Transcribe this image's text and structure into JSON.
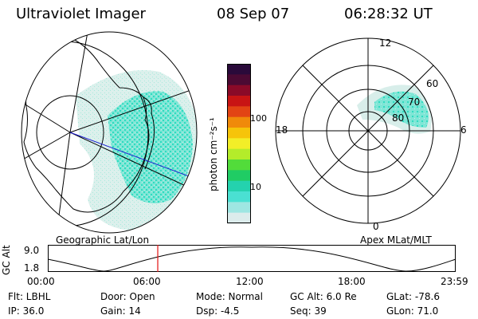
{
  "header": {
    "instrument": "Ultraviolet Imager",
    "date": "08 Sep 07",
    "time": "06:28:32 UT"
  },
  "colorbar": {
    "unit_label": "photon cm⁻²s⁻¹",
    "ticks": [
      "100",
      "10"
    ],
    "colors": [
      "#2a0a3a",
      "#4b0a33",
      "#8a0a28",
      "#c81414",
      "#e24414",
      "#f08a0a",
      "#f6c40a",
      "#f2ee28",
      "#b4ec2a",
      "#52dc3a",
      "#20cc64",
      "#24d2ae",
      "#4ae0d2",
      "#9ee6e2",
      "#dcecec"
    ]
  },
  "geo_map": {
    "label": "Geographic Lat/Lon",
    "aurora_colors": [
      "#2fdcc0",
      "#7fe6d6",
      "#c7eee6"
    ]
  },
  "polar_plot": {
    "label": "Apex MLat/MLT",
    "mlt_labels": {
      "top": "12",
      "right": "6",
      "left": "18",
      "bottom": "0"
    },
    "lat_labels": [
      "60",
      "70",
      "80"
    ]
  },
  "altitude_plot": {
    "ylabel": "GC Alt",
    "yticks": [
      "9.0",
      "1.8"
    ],
    "xticks": [
      "00:00",
      "06:00",
      "12:00",
      "18:00",
      "23:59"
    ],
    "cursor_color": "#e01010",
    "cursor_time_hours": 6.47
  },
  "footer": {
    "filter": "Flt: LBHL",
    "door": "Door: Open",
    "mode": "Mode: Normal",
    "gc_alt": "GC Alt: 6.0 Re",
    "glat": "GLat: -78.6",
    "ip": "IP: 36.0",
    "gain": "Gain: 14",
    "dsp": "Dsp:    -4.5",
    "seq": "Seq: 39",
    "glon": "GLon:  71.0"
  }
}
